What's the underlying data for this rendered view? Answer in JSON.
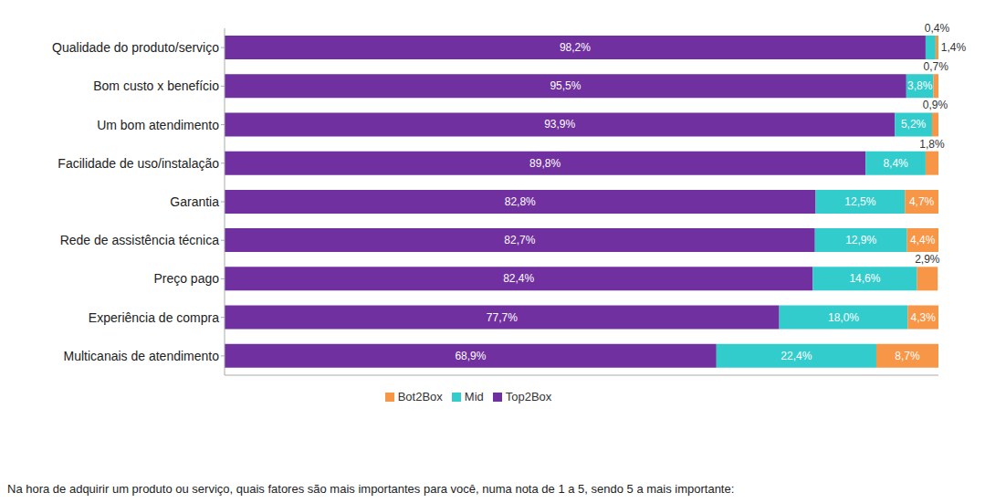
{
  "chart_data": {
    "type": "bar",
    "orientation": "horizontal",
    "stacked": true,
    "data_labels": true,
    "tick_labels": "y",
    "grid": false,
    "legend": "bottom",
    "subtitle": "Na hora de adquirir um produto ou serviço, quais fatores são mais importantes para você, numa nota de 1 a 5, sendo 5 a mais importante:",
    "categories": [
      "Qualidade do produto/serviço",
      "Bom custo x benefício",
      "Um bom atendimento",
      "Facilidade de uso/instalação",
      "Garantia",
      "Rede de assistência técnica",
      "Preço pago",
      "Experiência de compra",
      "Multicanais de atendimento"
    ],
    "xlim": [
      0,
      100
    ],
    "series": [
      {
        "name": "Top2Box",
        "color": "#7030a0",
        "values": [
          98.2,
          95.5,
          93.9,
          89.8,
          82.8,
          82.7,
          82.4,
          77.7,
          68.9
        ],
        "value_labels": [
          "98,2%",
          "95,5%",
          "93,9%",
          "89,8%",
          "82,8%",
          "82,7%",
          "82,4%",
          "77,7%",
          "68,9%"
        ]
      },
      {
        "name": "Mid",
        "color": "#33cccc",
        "values": [
          1.4,
          3.8,
          5.2,
          8.4,
          12.5,
          12.9,
          14.6,
          18.0,
          22.4
        ],
        "value_labels": [
          "1,4%",
          "3,8%",
          "5,2%",
          "8,4%",
          "12,5%",
          "12,9%",
          "14,6%",
          "18,0%",
          "22,4%"
        ]
      },
      {
        "name": "Bot2Box",
        "color": "#f79646",
        "values": [
          0.4,
          0.7,
          0.9,
          1.8,
          4.7,
          4.4,
          2.9,
          4.3,
          8.7
        ],
        "value_labels": [
          "0,4%",
          "0,7%",
          "0,9%",
          "1,8%",
          "4,7%",
          "4,4%",
          "2,9%",
          "4,3%",
          "8,7%"
        ]
      }
    ]
  }
}
